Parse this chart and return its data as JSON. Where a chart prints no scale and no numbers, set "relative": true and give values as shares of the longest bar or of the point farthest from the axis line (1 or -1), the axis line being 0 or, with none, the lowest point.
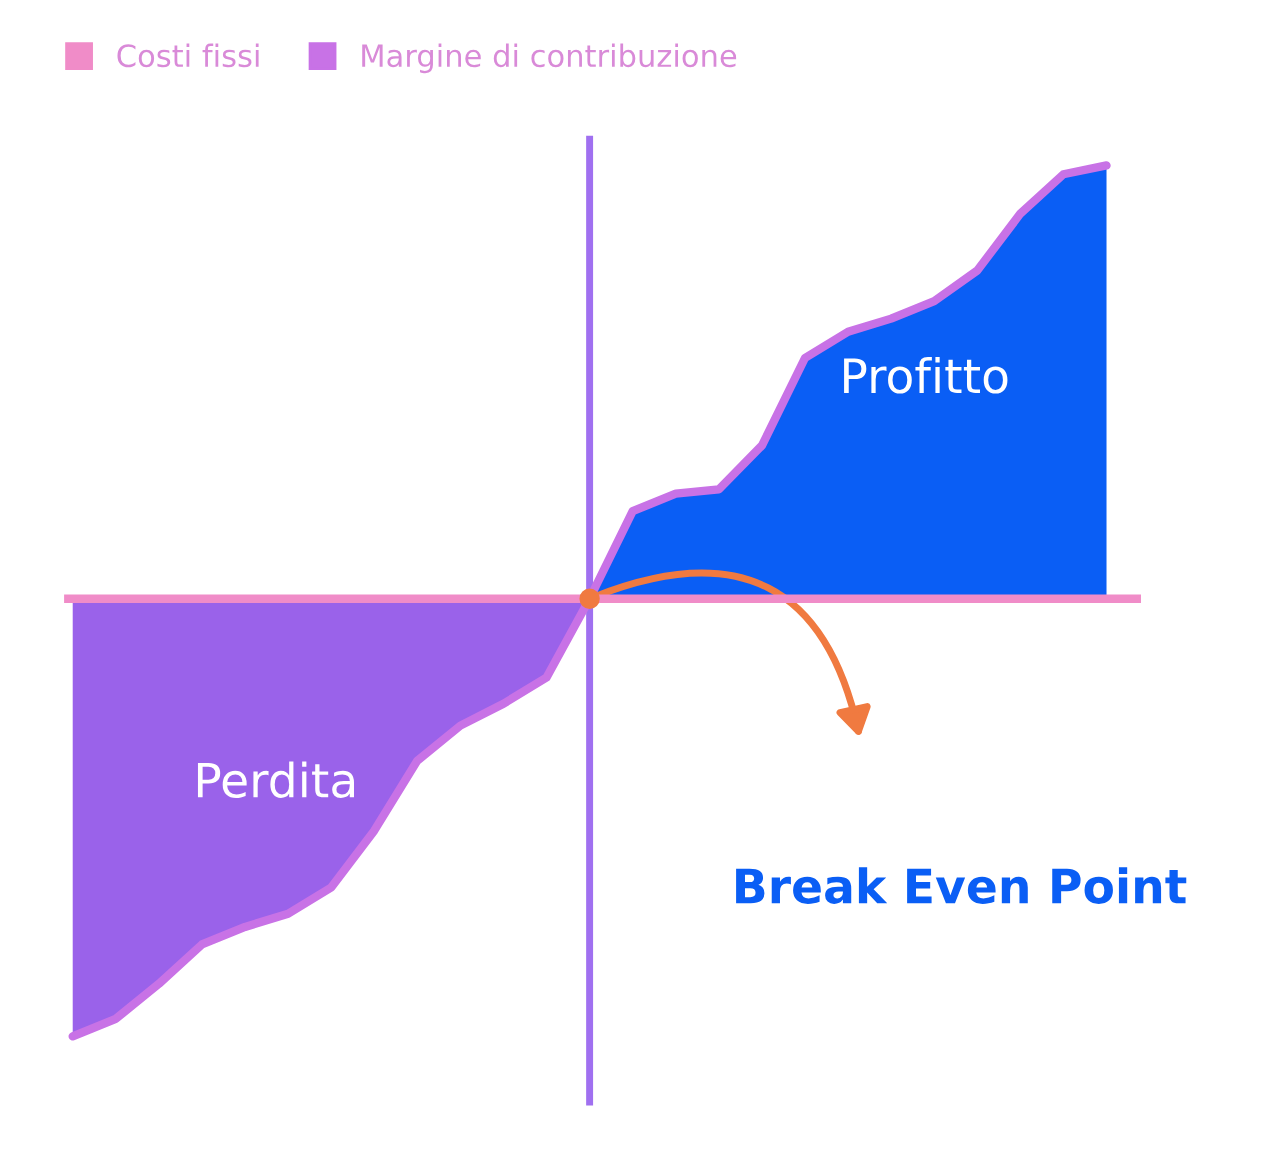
{
  "chart_data": {
    "type": "area",
    "relative": true,
    "legend": "top left",
    "categories": [
      null,
      null,
      null,
      null,
      null,
      null,
      null,
      null,
      null,
      null,
      null,
      null,
      null,
      null,
      null,
      null,
      null,
      null,
      null,
      null,
      null,
      null,
      null,
      null,
      null
    ],
    "series": [
      {
        "color": "#9a62ea",
        "values": [
          -1.0,
          -0.96,
          -0.88,
          -0.79,
          -0.75,
          -0.72,
          -0.66,
          -0.53,
          -0.37,
          -0.29,
          -0.24,
          -0.18,
          0,
          null,
          null,
          null,
          null,
          null,
          null,
          null,
          null,
          null,
          null,
          null,
          null
        ]
      },
      {
        "color": "#0a5ef5",
        "values": [
          null,
          null,
          null,
          null,
          null,
          null,
          null,
          null,
          null,
          null,
          null,
          null,
          0,
          0.2,
          0.24,
          0.25,
          0.35,
          0.55,
          0.61,
          0.64,
          0.68,
          0.75,
          0.88,
          0.97,
          0.99
        ]
      },
      {
        "type": "line",
        "name": "Margine di contribuzione",
        "color": "#c872e6",
        "values": [
          -1.0,
          -0.96,
          -0.88,
          -0.79,
          -0.75,
          -0.72,
          -0.66,
          -0.53,
          -0.37,
          -0.29,
          -0.24,
          -0.18,
          0,
          0.2,
          0.24,
          0.25,
          0.35,
          0.55,
          0.61,
          0.64,
          0.68,
          0.75,
          0.88,
          0.97,
          0.99
        ]
      }
    ],
    "ref_lines": [
      {
        "axis": "y",
        "value": 0,
        "label": "Costi fissi",
        "color": "#f08cc8"
      }
    ],
    "annotations": [
      "Perdita",
      "Profitto",
      "Break Even Point"
    ]
  }
}
